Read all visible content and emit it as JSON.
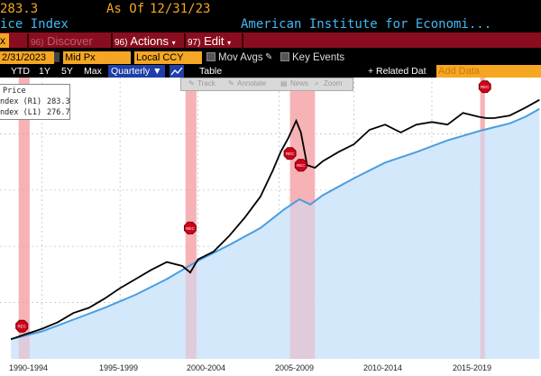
{
  "header": {
    "last_value": "283.3",
    "as_of_label": "As Of",
    "as_of_date": "12/31/23",
    "index_name": "ice Index",
    "source": "American Institute for Economi..."
  },
  "toolbar": {
    "left_cell": "x",
    "discover_num": "96)",
    "discover": "Discover",
    "actions_num": "96)",
    "actions": "Actions",
    "edit_num": "97)",
    "edit": "Edit"
  },
  "inputs": {
    "date": "2/31/2023",
    "field": "Mid Px",
    "currency": "Local CCY",
    "mov_avgs": "Mov Avgs",
    "key_events": "Key Events"
  },
  "range": {
    "ytd": "YTD",
    "y1": "1Y",
    "y5": "5Y",
    "max": "Max",
    "periodicity": "Quarterly",
    "table": "Table",
    "related": "+ Related Dat",
    "add_data": "Add Data"
  },
  "chart_tools": {
    "track": "Track",
    "annotate": "Annotate",
    "news": "News",
    "zoom": "Zoom"
  },
  "legend": {
    "title": "Price",
    "r1_label": "ndex (R1)",
    "r1_value": "283.3",
    "l1_label": "ndex (L1)",
    "l1_value": "276.7"
  },
  "chart_data": {
    "type": "line",
    "x_labels": [
      "1990-1994",
      "1995-1999",
      "2000-2004",
      "2005-2009",
      "2010-2014",
      "2015-2019"
    ],
    "recession_marker": "REC",
    "recessions": [
      {
        "start": 1990.5,
        "end": 1991.2
      },
      {
        "start": 2001.2,
        "end": 2001.9
      },
      {
        "start": 2007.9,
        "end": 2009.5
      },
      {
        "start": 2020.1,
        "end": 2020.4
      }
    ],
    "colors": {
      "r1": "#000000",
      "l1": "#4a9ee0",
      "l1_fill": "#cfe6fb",
      "recession": "#f6a3a8"
    },
    "series": [
      {
        "key": "r1",
        "x": [
          1990.0,
          1991.0,
          1992.0,
          1993.0,
          1994.0,
          1995.0,
          1996.0,
          1997.0,
          1998.0,
          1999.0,
          2000.0,
          2001.0,
          2001.5,
          2002.0,
          2003.0,
          2004.0,
          2005.0,
          2006.0,
          2006.8,
          2007.3,
          2007.8,
          2008.3,
          2008.6,
          2009.0,
          2009.5,
          2010.0,
          2011.0,
          2012.0,
          2013.0,
          2014.0,
          2015.0,
          2016.0,
          2017.0,
          2018.0,
          2019.0,
          2020.0,
          2020.5,
          2021.0,
          2022.0,
          2023.0,
          2023.9
        ],
        "values": [
          100,
          104,
          108,
          113,
          120,
          124,
          131,
          139,
          146,
          153,
          159,
          156,
          151,
          161,
          167,
          179,
          193,
          209,
          229,
          243,
          254,
          267,
          258,
          233,
          231,
          236,
          243,
          249,
          260,
          264,
          258,
          264,
          266,
          264,
          273,
          270,
          269,
          269,
          271,
          277,
          283
        ]
      },
      {
        "key": "l1",
        "x": [
          1990.0,
          1992.0,
          1994.0,
          1996.0,
          1998.0,
          2000.0,
          2002.0,
          2004.0,
          2006.0,
          2007.5,
          2008.5,
          2009.2,
          2010.0,
          2012.0,
          2014.0,
          2016.0,
          2018.0,
          2020.0,
          2021.0,
          2022.0,
          2023.0,
          2023.9
        ],
        "values": [
          100,
          106,
          115,
          124,
          134,
          146,
          160,
          172,
          185,
          199,
          207,
          203,
          210,
          223,
          235,
          243,
          252,
          259,
          262,
          265,
          270,
          276
        ]
      }
    ]
  }
}
